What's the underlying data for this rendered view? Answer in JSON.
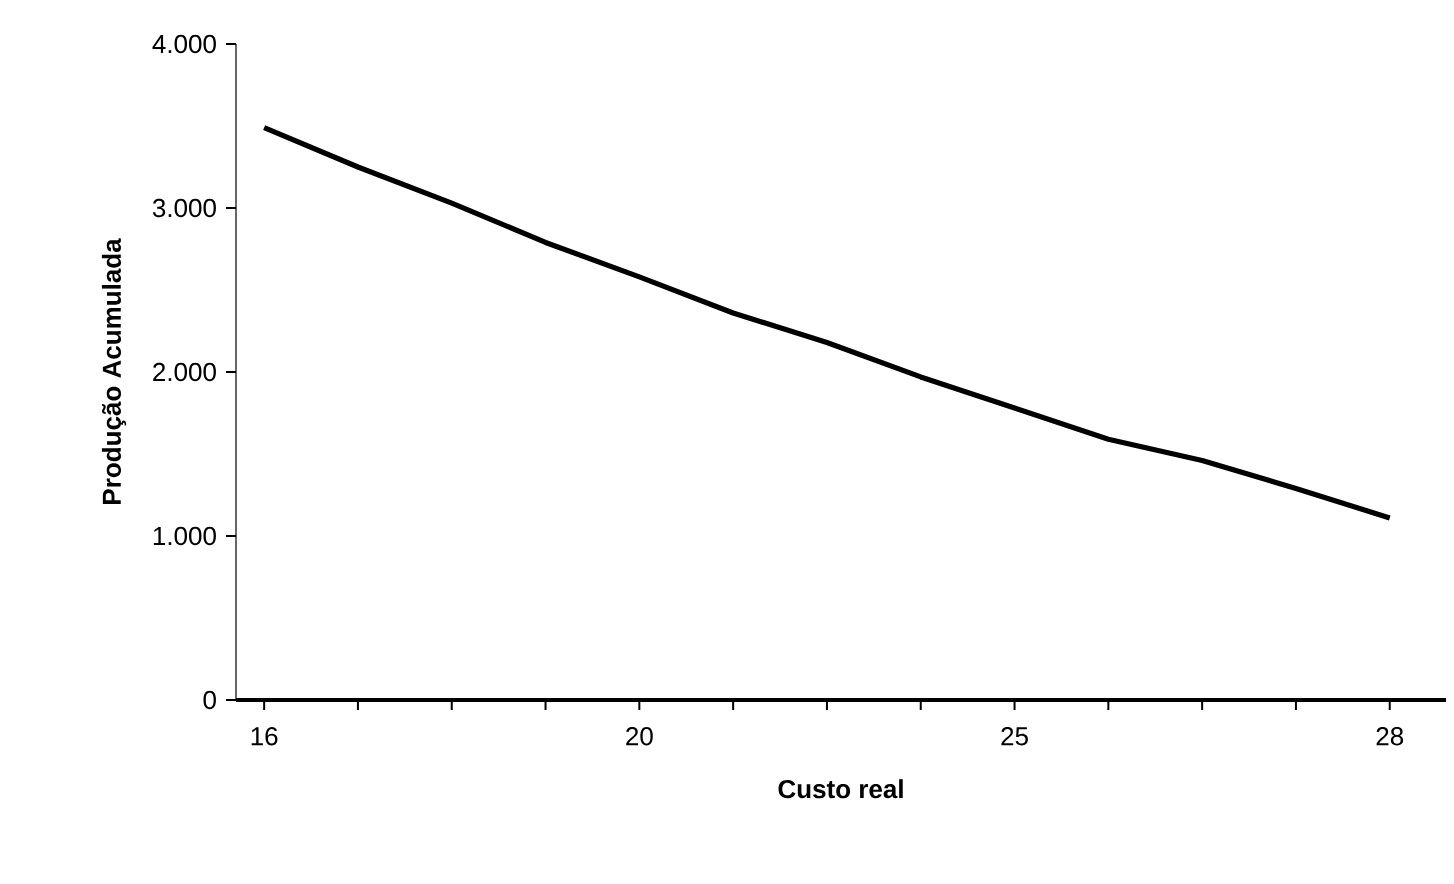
{
  "chart_data": {
    "type": "line",
    "xlabel": "Custo real",
    "ylabel": "Produção Acumulada",
    "categories": [
      "16",
      null,
      null,
      null,
      "20",
      null,
      null,
      null,
      "25",
      null,
      null,
      null,
      "28"
    ],
    "series": [
      {
        "color": "#000000",
        "values": [
          3490,
          3250,
          3030,
          2790,
          2580,
          2360,
          2180,
          1970,
          1780,
          1590,
          1460,
          1290,
          1110
        ]
      }
    ],
    "ylim": [
      0,
      4000
    ],
    "yticks": [
      0,
      {
        "value": 1000,
        "label": "1.000"
      },
      {
        "value": 2000,
        "label": "2.000"
      },
      {
        "value": 3000,
        "label": "3.000"
      },
      {
        "value": 4000,
        "label": "4.000"
      }
    ],
    "grid": false,
    "marker": "none",
    "line_style": "solid"
  }
}
